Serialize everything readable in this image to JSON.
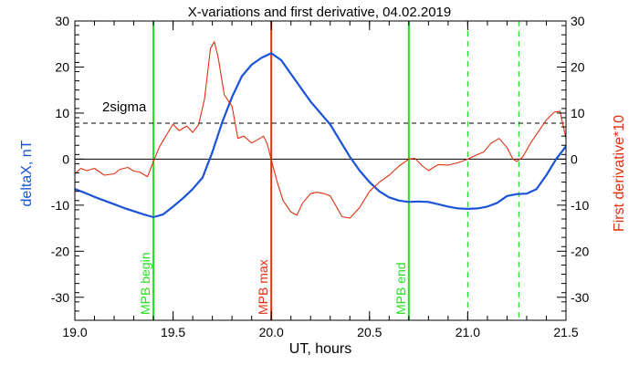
{
  "chart_data": {
    "type": "line",
    "title": "X-variations and first derivative, 04.02.2019",
    "xlabel": "UT, hours",
    "ylabel_left": "deltaX, nT",
    "ylabel_right": "First derivative*10",
    "xlim": [
      19.0,
      21.5
    ],
    "ylim": [
      -35,
      30
    ],
    "x_ticks": [
      "19.0",
      "19.5",
      "20.0",
      "20.5",
      "21.0",
      "21.5"
    ],
    "y_ticks": [
      "30",
      "20",
      "10",
      "0",
      "-10",
      "-20",
      "-30"
    ],
    "grid": false,
    "threshold": {
      "label": "2sigma",
      "value": 7.8,
      "style": "dashed"
    },
    "zero_line": 0,
    "colors": {
      "deltaX": "#1a52d8",
      "derivative": "#e03010",
      "mpb": "#22e022",
      "mpb_max": "#e03010"
    },
    "markers": [
      {
        "label": "MPB begin",
        "x": 19.4,
        "color": "#22e022",
        "style": "solid"
      },
      {
        "label": "MPB max",
        "x": 20.0,
        "color": "#e03010",
        "style": "solid"
      },
      {
        "label": "MPB end",
        "x": 20.7,
        "color": "#22e022",
        "style": "solid"
      },
      {
        "label": "",
        "x": 21.0,
        "color": "#22e022",
        "style": "dashed"
      },
      {
        "label": "",
        "x": 21.26,
        "color": "#22e022",
        "style": "dashed"
      }
    ],
    "series": [
      {
        "key": "deltaX",
        "color": "#1a52d8",
        "x": [
          19.0,
          19.05,
          19.1,
          19.15,
          19.2,
          19.25,
          19.3,
          19.35,
          19.4,
          19.45,
          19.5,
          19.55,
          19.6,
          19.65,
          19.7,
          19.75,
          19.8,
          19.85,
          19.9,
          19.95,
          20.0,
          20.05,
          20.1,
          20.15,
          20.2,
          20.25,
          20.3,
          20.35,
          20.4,
          20.45,
          20.5,
          20.55,
          20.6,
          20.65,
          20.7,
          20.75,
          20.8,
          20.85,
          20.9,
          20.95,
          21.0,
          21.05,
          21.1,
          21.15,
          21.2,
          21.25,
          21.3,
          21.35,
          21.4,
          21.45,
          21.5
        ],
        "y": [
          -6.5,
          -7.3,
          -8.2,
          -9.0,
          -9.8,
          -10.6,
          -11.3,
          -12.0,
          -12.6,
          -12.0,
          -10.3,
          -8.5,
          -6.5,
          -4.0,
          1.5,
          8.0,
          13.5,
          18.0,
          20.5,
          22.0,
          23.0,
          21.5,
          18.5,
          15.5,
          12.5,
          10.0,
          7.5,
          4.0,
          0.5,
          -2.5,
          -5.0,
          -7.0,
          -8.3,
          -9.0,
          -9.3,
          -9.2,
          -9.3,
          -9.8,
          -10.3,
          -10.7,
          -10.8,
          -10.7,
          -10.3,
          -9.5,
          -8.0,
          -7.6,
          -7.5,
          -6.5,
          -3.5,
          0.0,
          2.8
        ]
      },
      {
        "key": "derivative",
        "color": "#e03010",
        "x": [
          19.0,
          19.03,
          19.06,
          19.1,
          19.15,
          19.2,
          19.23,
          19.27,
          19.3,
          19.33,
          19.37,
          19.4,
          19.43,
          19.47,
          19.5,
          19.53,
          19.57,
          19.6,
          19.63,
          19.66,
          19.69,
          19.71,
          19.73,
          19.76,
          19.8,
          19.83,
          19.86,
          19.9,
          19.93,
          19.96,
          19.98,
          20.0,
          20.03,
          20.06,
          20.1,
          20.13,
          20.16,
          20.2,
          20.23,
          20.27,
          20.3,
          20.34,
          20.36,
          20.4,
          20.45,
          20.5,
          20.55,
          20.6,
          20.65,
          20.7,
          20.73,
          20.77,
          20.8,
          20.85,
          20.9,
          20.95,
          21.0,
          21.05,
          21.08,
          21.12,
          21.16,
          21.2,
          21.23,
          21.25,
          21.28,
          21.32,
          21.36,
          21.4,
          21.44,
          21.47,
          21.5
        ],
        "y": [
          -3.2,
          -2.0,
          -2.5,
          -2.0,
          -3.5,
          -3.2,
          -2.2,
          -1.8,
          -2.6,
          -2.8,
          -3.8,
          -0.5,
          2.6,
          5.5,
          7.6,
          6.2,
          7.2,
          5.8,
          7.5,
          13.0,
          24.0,
          25.5,
          22.0,
          14.0,
          11.5,
          4.5,
          5.0,
          3.5,
          4.2,
          5.0,
          3.2,
          -0.2,
          -5.0,
          -9.0,
          -11.5,
          -12.2,
          -9.5,
          -7.5,
          -7.2,
          -7.5,
          -8.0,
          -11.0,
          -12.5,
          -12.8,
          -10.5,
          -7.0,
          -5.0,
          -3.5,
          -1.5,
          0.0,
          0.2,
          -1.5,
          -2.5,
          -1.2,
          -1.3,
          -0.8,
          0.0,
          1.0,
          1.5,
          3.5,
          4.5,
          2.5,
          0.0,
          -0.5,
          0.5,
          3.5,
          6.0,
          8.5,
          10.2,
          10.4,
          4.5
        ]
      }
    ]
  }
}
